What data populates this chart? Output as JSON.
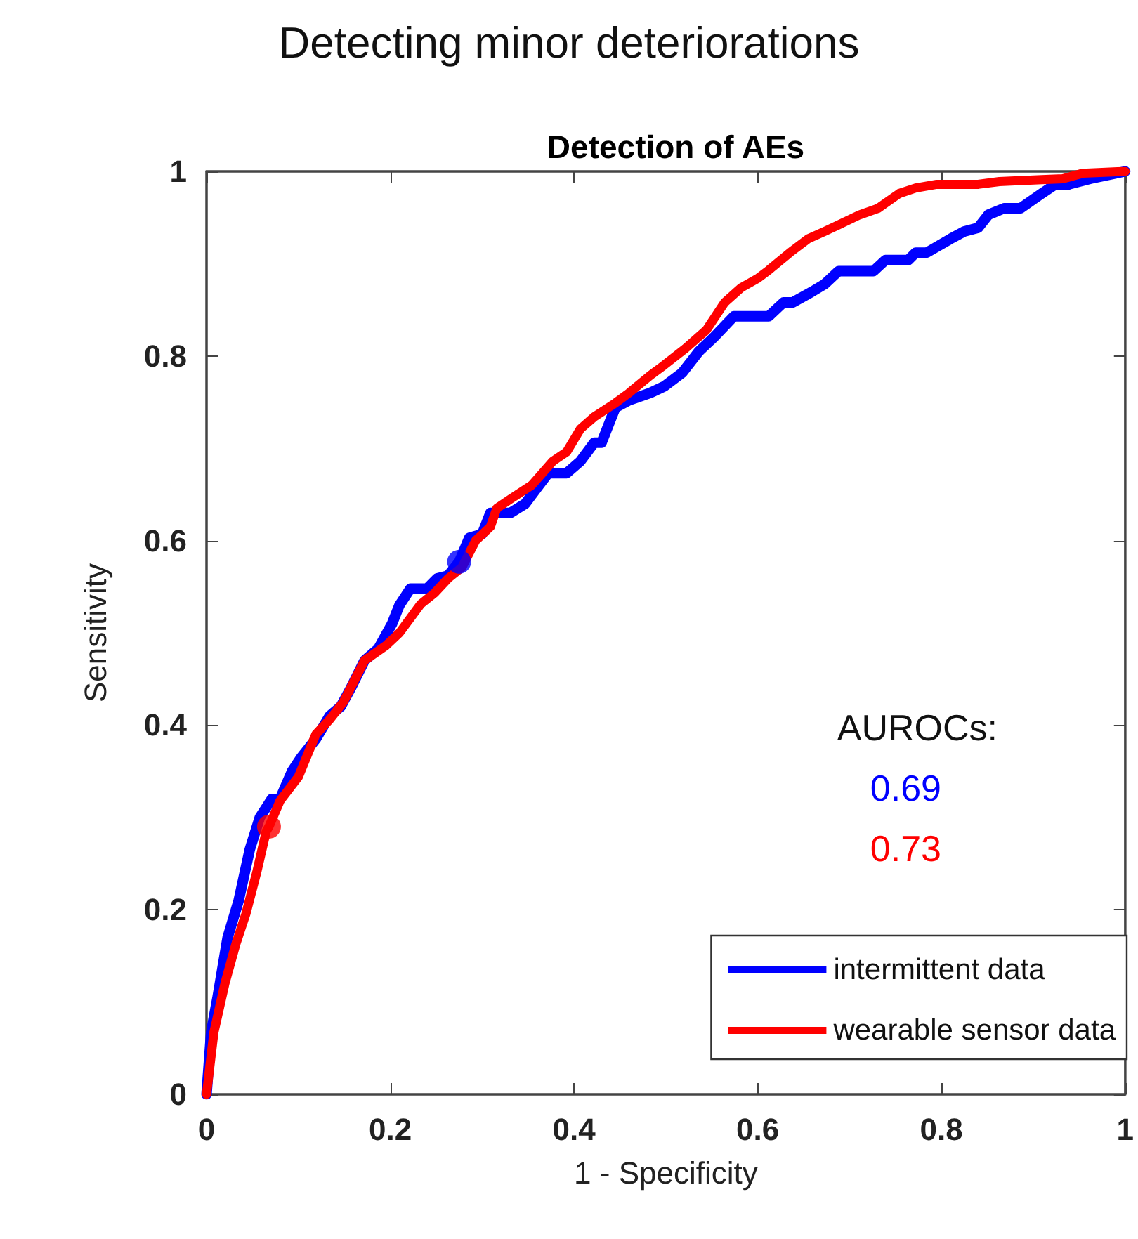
{
  "chart_data": {
    "type": "line",
    "title": "Detecting minor deteriorations",
    "subtitle": "Detection of AEs",
    "xlabel": "1 - Specificity",
    "ylabel": "Sensitivity",
    "xlim": [
      0,
      1
    ],
    "ylim": [
      0,
      1
    ],
    "xticks": [
      0,
      0.2,
      0.4,
      0.6,
      0.8,
      1
    ],
    "yticks": [
      0,
      0.2,
      0.4,
      0.6,
      0.8,
      1
    ],
    "grid": false,
    "legend": "bottom right",
    "line_style": "solid",
    "annotations": [
      "AUROCs:",
      "0.69",
      "0.73"
    ],
    "series": [
      {
        "name": "intermittent data",
        "color": "#0000ff",
        "marker": "none",
        "x": [
          0,
          0.005,
          0.012,
          0.023,
          0.035,
          0.047,
          0.058,
          0.071,
          0.08,
          0.093,
          0.103,
          0.119,
          0.134,
          0.146,
          0.157,
          0.172,
          0.187,
          0.202,
          0.21,
          0.222,
          0.24,
          0.251,
          0.263,
          0.275,
          0.286,
          0.3,
          0.309,
          0.331,
          0.347,
          0.362,
          0.372,
          0.392,
          0.407,
          0.422,
          0.43,
          0.445,
          0.46,
          0.483,
          0.498,
          0.518,
          0.536,
          0.552,
          0.574,
          0.612,
          0.628,
          0.638,
          0.658,
          0.673,
          0.688,
          0.726,
          0.739,
          0.764,
          0.772,
          0.784,
          0.81,
          0.825,
          0.84,
          0.851,
          0.868,
          0.886,
          0.909,
          0.924,
          0.939,
          0.962,
          1
        ],
        "values": [
          0,
          0.067,
          0.105,
          0.17,
          0.21,
          0.265,
          0.3,
          0.32,
          0.32,
          0.35,
          0.365,
          0.385,
          0.41,
          0.42,
          0.44,
          0.47,
          0.483,
          0.51,
          0.53,
          0.548,
          0.548,
          0.559,
          0.562,
          0.577,
          0.603,
          0.607,
          0.63,
          0.63,
          0.64,
          0.66,
          0.673,
          0.673,
          0.686,
          0.706,
          0.706,
          0.744,
          0.752,
          0.76,
          0.767,
          0.782,
          0.805,
          0.82,
          0.843,
          0.843,
          0.858,
          0.858,
          0.869,
          0.878,
          0.892,
          0.892,
          0.904,
          0.904,
          0.912,
          0.912,
          0.927,
          0.935,
          0.939,
          0.953,
          0.96,
          0.96,
          0.976,
          0.986,
          0.986,
          0.992,
          1
        ]
      },
      {
        "name": "wearable sensor data",
        "color": "#ff0000",
        "marker": "none",
        "x": [
          0,
          0.008,
          0.02,
          0.032,
          0.043,
          0.055,
          0.065,
          0.068,
          0.08,
          0.1,
          0.119,
          0.134,
          0.149,
          0.172,
          0.195,
          0.21,
          0.233,
          0.248,
          0.263,
          0.278,
          0.293,
          0.309,
          0.316,
          0.331,
          0.354,
          0.377,
          0.392,
          0.407,
          0.422,
          0.445,
          0.46,
          0.483,
          0.498,
          0.521,
          0.544,
          0.564,
          0.582,
          0.6,
          0.612,
          0.635,
          0.655,
          0.673,
          0.688,
          0.711,
          0.731,
          0.754,
          0.772,
          0.795,
          0.84,
          0.863,
          0.909,
          0.932,
          0.954,
          1
        ],
        "values": [
          0,
          0.067,
          0.12,
          0.163,
          0.196,
          0.242,
          0.285,
          0.29,
          0.318,
          0.344,
          0.39,
          0.406,
          0.425,
          0.47,
          0.486,
          0.5,
          0.531,
          0.543,
          0.559,
          0.571,
          0.6,
          0.615,
          0.635,
          0.645,
          0.66,
          0.686,
          0.696,
          0.721,
          0.734,
          0.749,
          0.76,
          0.779,
          0.79,
          0.808,
          0.828,
          0.858,
          0.874,
          0.884,
          0.893,
          0.912,
          0.927,
          0.935,
          0.942,
          0.953,
          0.96,
          0.976,
          0.982,
          0.986,
          0.986,
          0.989,
          0.991,
          0.992,
          0.998,
          1
        ]
      },
      {
        "type": "scatter",
        "color": "#0000ff",
        "marker": "circle",
        "x": [
          0.275
        ],
        "values": [
          0.577
        ]
      },
      {
        "type": "scatter",
        "color": "#ff0000",
        "marker": "circle",
        "x": [
          0.068
        ],
        "values": [
          0.29
        ]
      }
    ]
  }
}
